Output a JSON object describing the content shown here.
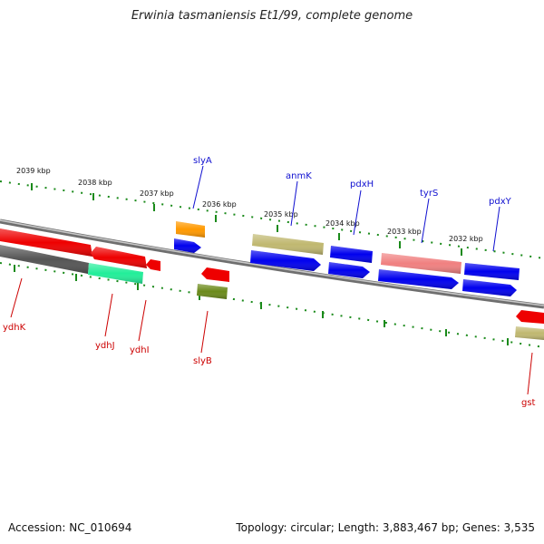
{
  "title": "Erwinia tasmaniensis Et1/99, complete genome",
  "footer": {
    "accession": "Accession: NC_010694",
    "summary": "Topology: circular; Length: 3,883,467 bp; Genes: 3,535"
  },
  "colors": {
    "backbone": "#8c8c8c",
    "tick": "#1a8a1a",
    "upper_label": "#1010d0",
    "lower_label": "#cc0000"
  },
  "ticks": [
    {
      "label": "2039 kbp"
    },
    {
      "label": "2038 kbp"
    },
    {
      "label": "2037 kbp"
    },
    {
      "label": "2036 kbp"
    },
    {
      "label": "2035 kbp"
    },
    {
      "label": "2034 kbp"
    },
    {
      "label": "2033 kbp"
    },
    {
      "label": "2032 kbp"
    }
  ],
  "gene_labels": {
    "slyA": "slyA",
    "anmK": "anmK",
    "pdxH": "pdxH",
    "tyrS": "tyrS",
    "pdxY": "pdxY",
    "ydhK": "ydhK",
    "ydhJ": "ydhJ",
    "ydhI": "ydhI",
    "slyB": "slyB",
    "gst": "gst"
  }
}
